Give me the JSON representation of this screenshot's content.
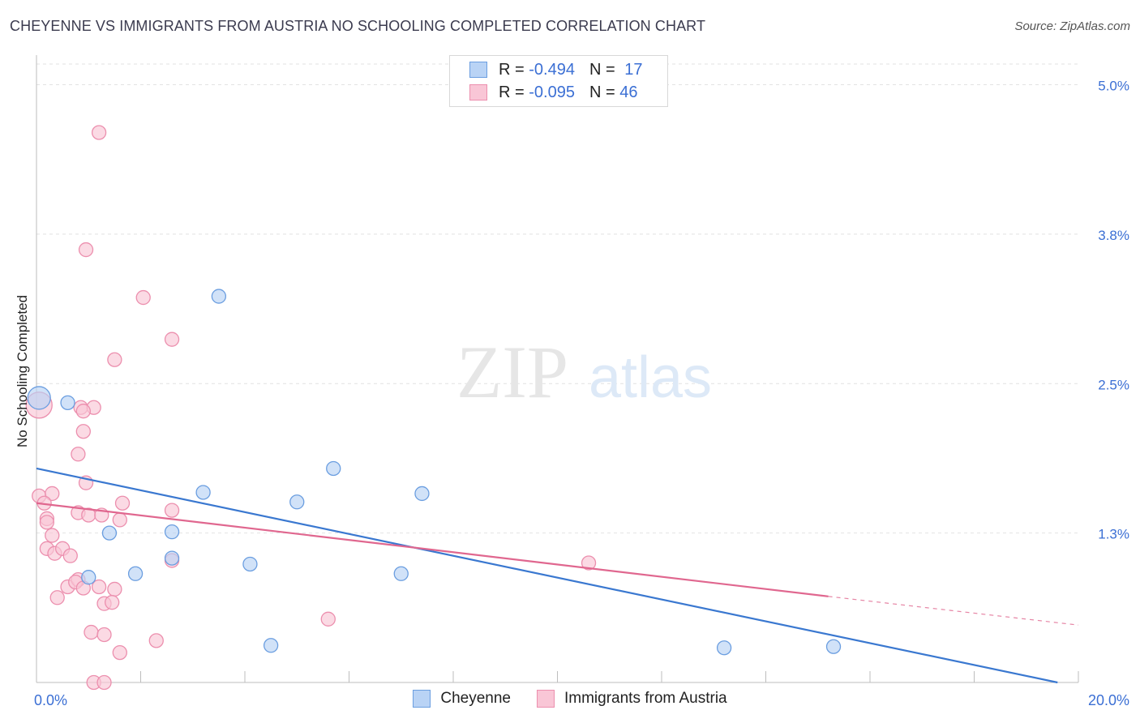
{
  "title": "CHEYENNE VS IMMIGRANTS FROM AUSTRIA NO SCHOOLING COMPLETED CORRELATION CHART",
  "source": "Source: ZipAtlas.com",
  "watermark": {
    "zip": "ZIP",
    "atlas": "atlas"
  },
  "legend": {
    "series1": {
      "r_label": "R =",
      "r_value": "-0.494",
      "n_label": "N =",
      "n_value": "17"
    },
    "series2": {
      "r_label": "R =",
      "r_value": "-0.095",
      "n_label": "N =",
      "n_value": "46"
    }
  },
  "colors": {
    "series1_fill": "#b9d3f5",
    "series1_stroke": "#6b9ee0",
    "series1_line": "#3a78d0",
    "series2_fill": "#f9c6d6",
    "series2_stroke": "#ec8fae",
    "series2_line": "#e0678f",
    "tick_label": "#3b6fd4"
  },
  "chart_data": {
    "type": "scatter",
    "title": "CHEYENNE VS IMMIGRANTS FROM AUSTRIA NO SCHOOLING COMPLETED CORRELATION CHART",
    "xlabel": "",
    "ylabel": "No Schooling Completed",
    "xlim": [
      0,
      20
    ],
    "ylim": [
      0,
      5.2
    ],
    "x_tick_labels": [
      {
        "value": 0,
        "label": "0.0%"
      },
      {
        "value": 20,
        "label": "20.0%"
      }
    ],
    "y_tick_labels": [
      {
        "value": 1.25,
        "label": "1.3%"
      },
      {
        "value": 2.5,
        "label": "2.5%"
      },
      {
        "value": 3.75,
        "label": "3.8%"
      },
      {
        "value": 5.0,
        "label": "5.0%"
      }
    ],
    "series": [
      {
        "name": "Cheyenne",
        "points": [
          [
            0.05,
            2.38
          ],
          [
            0.6,
            2.34
          ],
          [
            3.5,
            3.23
          ],
          [
            1.0,
            0.88
          ],
          [
            1.4,
            1.25
          ],
          [
            1.9,
            0.91
          ],
          [
            2.6,
            1.26
          ],
          [
            2.6,
            1.04
          ],
          [
            3.2,
            1.59
          ],
          [
            4.1,
            0.99
          ],
          [
            4.5,
            0.31
          ],
          [
            5.0,
            1.51
          ],
          [
            5.7,
            1.79
          ],
          [
            7.0,
            0.91
          ],
          [
            7.4,
            1.58
          ],
          [
            13.2,
            0.29
          ],
          [
            15.3,
            0.3
          ]
        ],
        "trend": {
          "x": [
            0,
            19.6
          ],
          "y": [
            1.79,
            0.0
          ]
        }
      },
      {
        "name": "Immigrants from Austria",
        "points": [
          [
            1.2,
            4.6
          ],
          [
            0.95,
            3.62
          ],
          [
            2.05,
            3.22
          ],
          [
            2.6,
            2.87
          ],
          [
            1.5,
            2.7
          ],
          [
            0.05,
            2.32
          ],
          [
            0.85,
            2.3
          ],
          [
            1.1,
            2.3
          ],
          [
            0.9,
            2.27
          ],
          [
            0.9,
            2.1
          ],
          [
            0.8,
            1.91
          ],
          [
            0.95,
            1.67
          ],
          [
            0.05,
            1.56
          ],
          [
            0.3,
            1.58
          ],
          [
            0.15,
            1.5
          ],
          [
            0.2,
            1.37
          ],
          [
            0.2,
            1.34
          ],
          [
            0.8,
            1.42
          ],
          [
            1.0,
            1.4
          ],
          [
            1.25,
            1.4
          ],
          [
            1.65,
            1.5
          ],
          [
            1.6,
            1.36
          ],
          [
            2.6,
            1.44
          ],
          [
            0.3,
            1.23
          ],
          [
            0.2,
            1.12
          ],
          [
            0.35,
            1.08
          ],
          [
            0.5,
            1.12
          ],
          [
            0.65,
            1.06
          ],
          [
            2.6,
            1.02
          ],
          [
            0.6,
            0.8
          ],
          [
            0.8,
            0.86
          ],
          [
            0.75,
            0.84
          ],
          [
            0.9,
            0.79
          ],
          [
            1.2,
            0.8
          ],
          [
            1.5,
            0.78
          ],
          [
            0.4,
            0.71
          ],
          [
            1.3,
            0.66
          ],
          [
            1.45,
            0.67
          ],
          [
            1.05,
            0.42
          ],
          [
            1.3,
            0.4
          ],
          [
            2.3,
            0.35
          ],
          [
            1.6,
            0.25
          ],
          [
            5.6,
            0.53
          ],
          [
            10.6,
            1.0
          ],
          [
            1.1,
            0.0
          ],
          [
            1.3,
            0.0
          ]
        ],
        "trend": {
          "x": [
            0,
            15.2
          ],
          "y": [
            1.5,
            0.72
          ]
        },
        "trend_dashed": {
          "x": [
            15.2,
            20
          ],
          "y": [
            0.72,
            0.48
          ]
        }
      }
    ],
    "legend_position": "bottom-center",
    "grid": true
  }
}
